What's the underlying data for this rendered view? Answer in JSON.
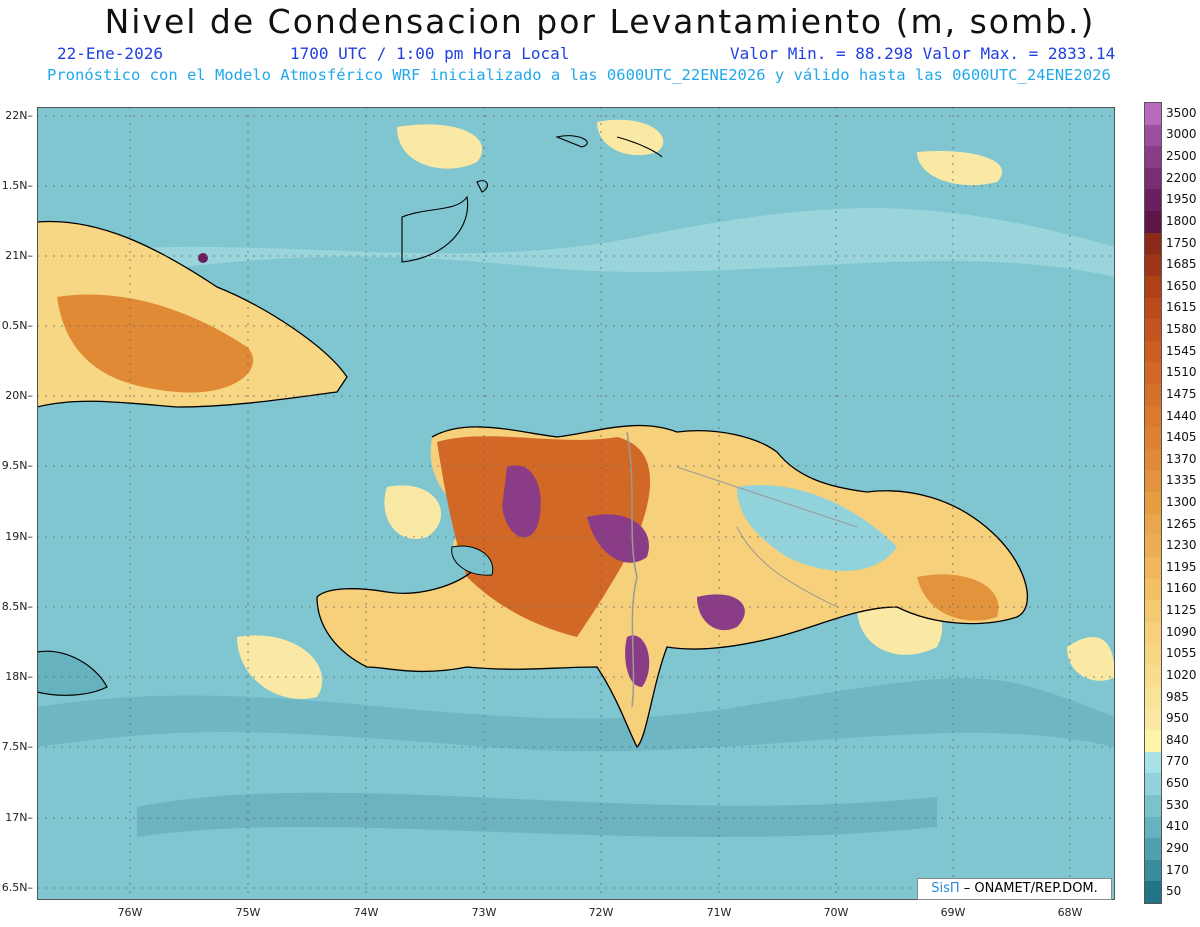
{
  "header": {
    "title": "Nivel de Condensacion por Levantamiento (m, somb.)",
    "date": "22-Ene-2026",
    "time": "1700 UTC / 1:00 pm Hora Local",
    "minmax": "Valor Min. = 88.298  Valor Max. = 2833.14",
    "model_line": "Pronóstico con el Modelo Atmosférico WRF inicializado a las 0600UTC_22ENE2026 y válido hasta las  0600UTC_24ENE2026"
  },
  "axes": {
    "lat_labels": [
      "22N",
      "1.5N",
      "21N",
      "0.5N",
      "20N",
      "9.5N",
      "19N",
      "8.5N",
      "18N",
      "7.5N",
      "17N",
      "6.5N"
    ],
    "lon_labels": [
      "76W",
      "75W",
      "74W",
      "73W",
      "72W",
      "71W",
      "70W",
      "69W",
      "68W"
    ]
  },
  "colorbar": {
    "labels": [
      "3500",
      "3000",
      "2500",
      "2200",
      "1950",
      "1800",
      "1750",
      "1685",
      "1650",
      "1615",
      "1580",
      "1545",
      "1510",
      "1475",
      "1440",
      "1405",
      "1370",
      "1335",
      "1300",
      "1265",
      "1230",
      "1195",
      "1160",
      "1125",
      "1090",
      "1055",
      "1020",
      "985",
      "950",
      "840",
      "770",
      "650",
      "530",
      "410",
      "290",
      "170",
      "50"
    ],
    "colors": [
      "#b76bbf",
      "#9c4f9e",
      "#8a3c87",
      "#7a2d73",
      "#6a205e",
      "#5a1747",
      "#8b2a1a",
      "#9e3418",
      "#b04018",
      "#bd4a1c",
      "#c55520",
      "#cc5e22",
      "#d26826",
      "#d6712a",
      "#da7a2e",
      "#dd8232",
      "#e08a36",
      "#e3933c",
      "#e79c42",
      "#eaa64a",
      "#edae52",
      "#f0b75c",
      "#f3c066",
      "#f5c970",
      "#f6d07a",
      "#f7d784",
      "#f8dd8e",
      "#f9e398",
      "#fae9a4",
      "#fdf4a8",
      "#a8e2e8",
      "#92d2da",
      "#7cc2cc",
      "#66b2be",
      "#4f9fae",
      "#3a8b9c",
      "#247488"
    ]
  },
  "credit": {
    "sis": "SisΠ",
    "org": " – ONAMET/REP.DOM."
  }
}
